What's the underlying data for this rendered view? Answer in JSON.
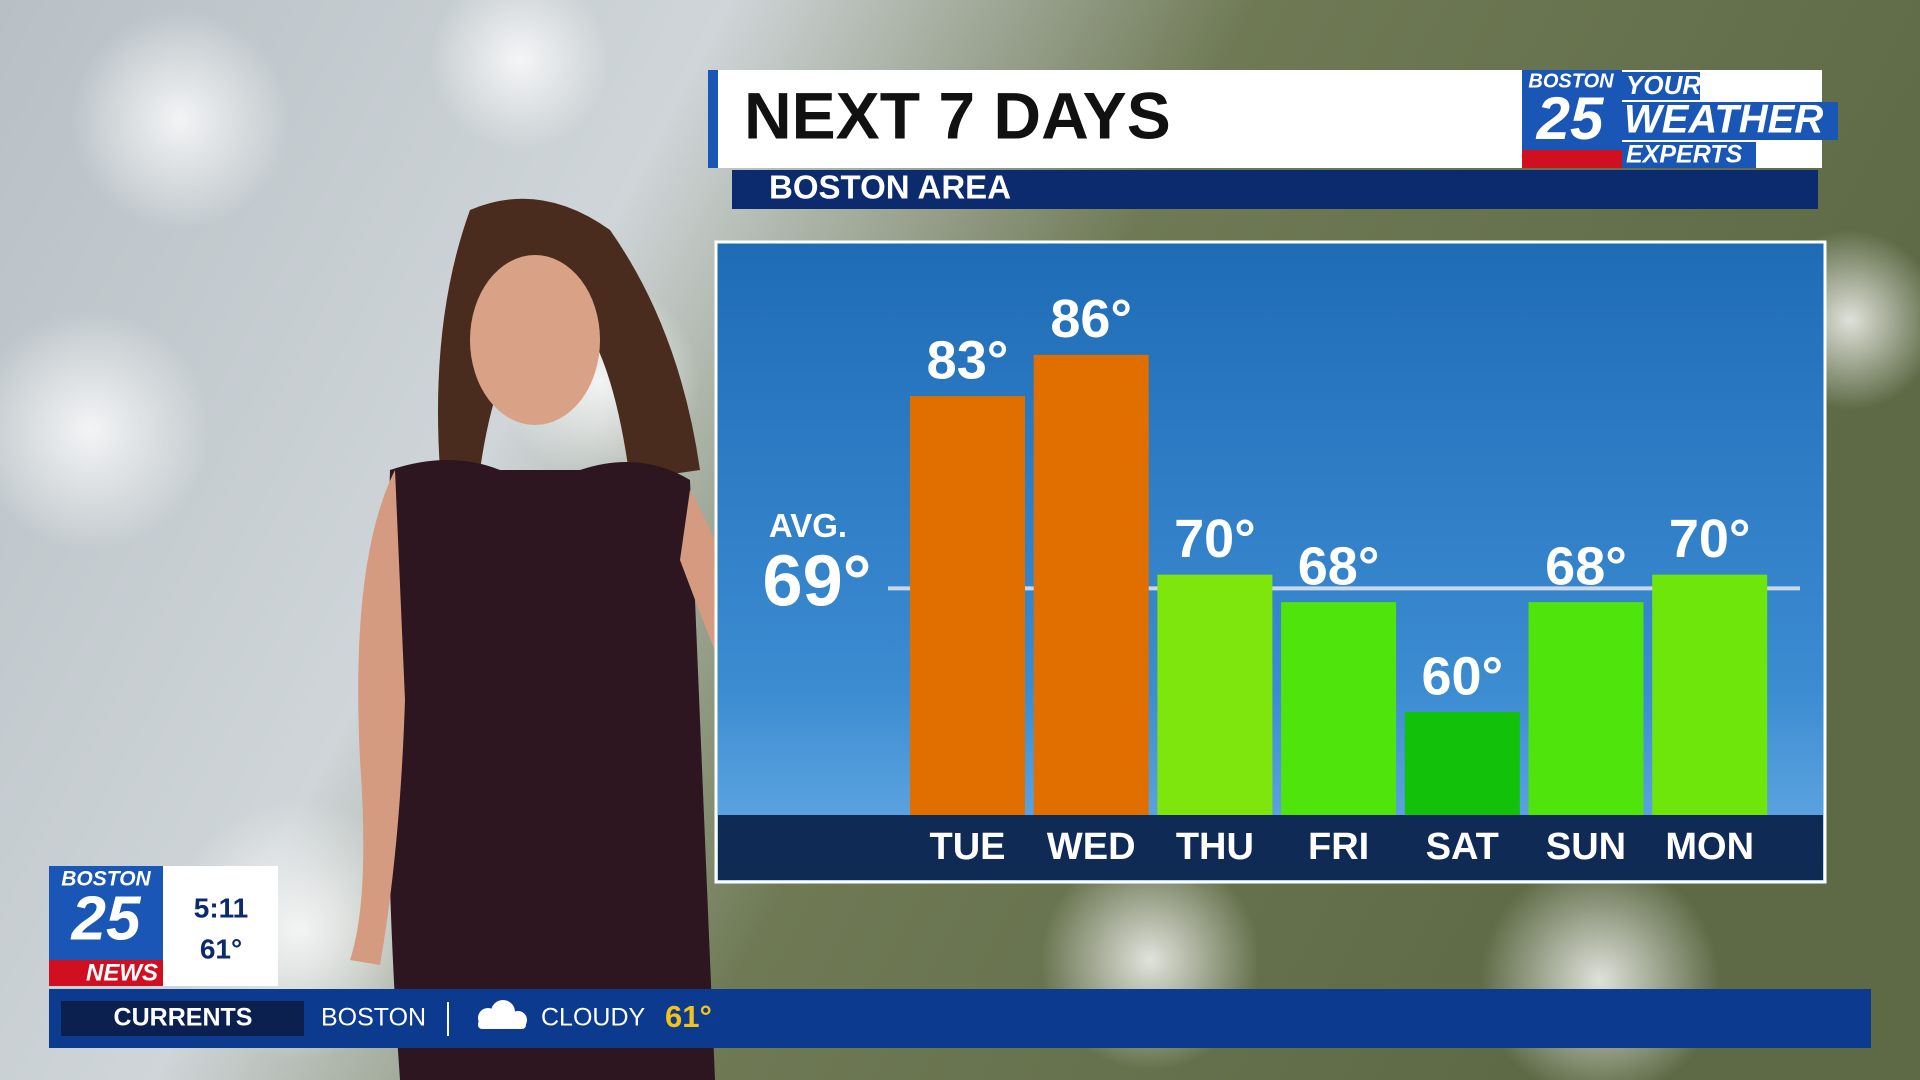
{
  "header": {
    "title": "NEXT 7 DAYS",
    "subtitle": "BOSTON AREA"
  },
  "logo": {
    "station": "BOSTON",
    "number": "25",
    "line1": "YOUR",
    "line2": "WEATHER",
    "line3": "EXPERTS"
  },
  "chart_data": {
    "type": "bar",
    "categories": [
      "TUE",
      "WED",
      "THU",
      "FRI",
      "SAT",
      "SUN",
      "MON"
    ],
    "values": [
      83,
      86,
      70,
      68,
      60,
      68,
      70
    ],
    "value_labels": [
      "83°",
      "86°",
      "70°",
      "68°",
      "60°",
      "68°",
      "70°"
    ],
    "colors": [
      "#e06f00",
      "#e06f00",
      "#7fe60d",
      "#4fe40c",
      "#12c10a",
      "#4fe40c",
      "#6ee60c"
    ],
    "ylim": [
      52.5,
      94
    ],
    "average": {
      "label": "AVG.",
      "value": 69,
      "value_label": "69°"
    }
  },
  "station_bug": {
    "station": "BOSTON",
    "number": "25",
    "brand": "NEWS",
    "time": "5:11",
    "temperature": "61°"
  },
  "ticker": {
    "label": "CURRENTS",
    "city": "BOSTON",
    "condition": "CLOUDY",
    "temperature": "61°"
  }
}
